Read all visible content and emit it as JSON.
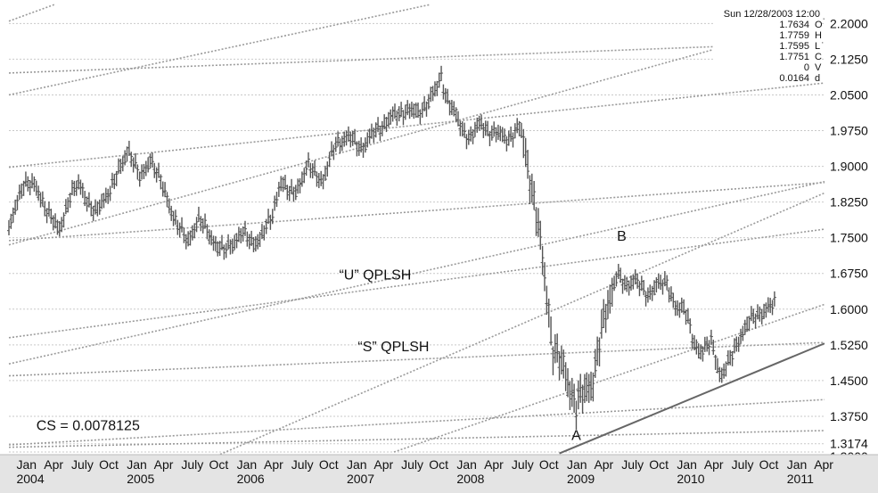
{
  "chart_data": {
    "type": "bar",
    "style": "OHLC price bars with trendline channels",
    "title": "",
    "xlabel": "",
    "ylabel": "",
    "ylim": [
      1.3,
      2.24
    ],
    "xlim": [
      "2003-12-01",
      "2011-04-30"
    ],
    "grid": true,
    "y_ticks": [
      "2.2000",
      "2.1250",
      "2.0500",
      "1.9750",
      "1.9000",
      "1.8250",
      "1.7500",
      "1.6750",
      "1.6000",
      "1.5250",
      "1.4500",
      "1.3750",
      "1.3174",
      "1.3000"
    ],
    "x_ticks": [
      {
        "label": "Jan",
        "year": "2004",
        "date": "2004-01-01"
      },
      {
        "label": "Apr",
        "date": "2004-04-01"
      },
      {
        "label": "July",
        "date": "2004-07-01"
      },
      {
        "label": "Oct",
        "date": "2004-10-01"
      },
      {
        "label": "Jan",
        "year": "2005",
        "date": "2005-01-01"
      },
      {
        "label": "Apr",
        "date": "2005-04-01"
      },
      {
        "label": "July",
        "date": "2005-07-01"
      },
      {
        "label": "Oct",
        "date": "2005-10-01"
      },
      {
        "label": "Jan",
        "year": "2006",
        "date": "2006-01-01"
      },
      {
        "label": "Apr",
        "date": "2006-04-01"
      },
      {
        "label": "July",
        "date": "2006-07-01"
      },
      {
        "label": "Oct",
        "date": "2006-10-01"
      },
      {
        "label": "Jan",
        "year": "2007",
        "date": "2007-01-01"
      },
      {
        "label": "Apr",
        "date": "2007-04-01"
      },
      {
        "label": "July",
        "date": "2007-07-01"
      },
      {
        "label": "Oct",
        "date": "2007-10-01"
      },
      {
        "label": "Jan",
        "year": "2008",
        "date": "2008-01-01"
      },
      {
        "label": "Apr",
        "date": "2008-04-01"
      },
      {
        "label": "July",
        "date": "2008-07-01"
      },
      {
        "label": "Oct",
        "date": "2008-10-01"
      },
      {
        "label": "Jan",
        "year": "2009",
        "date": "2009-01-01"
      },
      {
        "label": "Apr",
        "date": "2009-04-01"
      },
      {
        "label": "July",
        "date": "2009-07-01"
      },
      {
        "label": "Oct",
        "date": "2009-10-01"
      },
      {
        "label": "Jan",
        "year": "2010",
        "date": "2010-01-01"
      },
      {
        "label": "Apr",
        "date": "2010-04-01"
      },
      {
        "label": "July",
        "date": "2010-07-01"
      },
      {
        "label": "Oct",
        "date": "2010-10-01"
      },
      {
        "label": "Jan",
        "year": "2011",
        "date": "2011-01-01"
      },
      {
        "label": "Apr",
        "date": "2011-04-01"
      }
    ],
    "info_box": {
      "header": "Sun 12/28/2003 12:00",
      "rows": [
        {
          "value": "1.7634",
          "code": "O"
        },
        {
          "value": "1.7759",
          "code": "H"
        },
        {
          "value": "1.7595",
          "code": "L"
        },
        {
          "value": "1.7751",
          "code": "C"
        },
        {
          "value": "0",
          "code": "V"
        },
        {
          "value": "0.0164",
          "code": "d"
        }
      ]
    },
    "annotations": [
      {
        "text": "“U” QPLSH",
        "date": "2006-12-01",
        "y": 1.662
      },
      {
        "text": "“S” QPLSH",
        "date": "2007-02-01",
        "y": 1.512
      },
      {
        "text": "CS = 0.0078125",
        "date": "2004-03-01",
        "y": 1.346
      },
      {
        "text": "B",
        "date": "2009-06-10",
        "y": 1.744
      },
      {
        "text": "A",
        "date": "2009-01-10",
        "y": 1.325
      }
    ],
    "price_path": [
      [
        "2003-12-01",
        1.765
      ],
      [
        "2004-01-20",
        1.87
      ],
      [
        "2004-02-20",
        1.86
      ],
      [
        "2004-04-15",
        1.8
      ],
      [
        "2004-05-15",
        1.76
      ],
      [
        "2004-06-20",
        1.84
      ],
      [
        "2004-07-20",
        1.86
      ],
      [
        "2004-09-15",
        1.8
      ],
      [
        "2004-10-20",
        1.84
      ],
      [
        "2004-12-10",
        1.9
      ],
      [
        "2005-01-01",
        1.94
      ],
      [
        "2005-02-10",
        1.87
      ],
      [
        "2005-03-15",
        1.92
      ],
      [
        "2005-04-15",
        1.87
      ],
      [
        "2005-06-10",
        1.78
      ],
      [
        "2005-07-15",
        1.74
      ],
      [
        "2005-08-20",
        1.79
      ],
      [
        "2005-10-15",
        1.74
      ],
      [
        "2005-11-15",
        1.72
      ],
      [
        "2006-01-10",
        1.76
      ],
      [
        "2006-02-15",
        1.74
      ],
      [
        "2006-03-15",
        1.75
      ],
      [
        "2006-04-20",
        1.79
      ],
      [
        "2006-05-20",
        1.87
      ],
      [
        "2006-06-20",
        1.84
      ],
      [
        "2006-07-20",
        1.86
      ],
      [
        "2006-08-20",
        1.9
      ],
      [
        "2006-10-10",
        1.87
      ],
      [
        "2006-11-20",
        1.95
      ],
      [
        "2007-01-01",
        1.96
      ],
      [
        "2007-02-15",
        1.94
      ],
      [
        "2007-04-10",
        1.98
      ],
      [
        "2007-05-20",
        2.0
      ],
      [
        "2007-07-10",
        2.02
      ],
      [
        "2007-08-20",
        2.01
      ],
      [
        "2007-10-20",
        2.06
      ],
      [
        "2007-11-05",
        2.09
      ],
      [
        "2007-11-20",
        2.05
      ],
      [
        "2008-01-10",
        1.98
      ],
      [
        "2008-02-10",
        1.96
      ],
      [
        "2008-03-15",
        1.99
      ],
      [
        "2008-04-20",
        1.97
      ],
      [
        "2008-06-15",
        1.96
      ],
      [
        "2008-07-25",
        1.98
      ],
      [
        "2008-08-20",
        1.9
      ],
      [
        "2008-09-20",
        1.78
      ],
      [
        "2008-10-20",
        1.63
      ],
      [
        "2008-11-10",
        1.52
      ],
      [
        "2008-12-15",
        1.47
      ],
      [
        "2009-01-10",
        1.43
      ],
      [
        "2009-01-25",
        1.4
      ],
      [
        "2009-02-20",
        1.42
      ],
      [
        "2009-03-20",
        1.45
      ],
      [
        "2009-04-20",
        1.55
      ],
      [
        "2009-05-20",
        1.63
      ],
      [
        "2009-06-10",
        1.68
      ],
      [
        "2009-07-10",
        1.64
      ],
      [
        "2009-08-10",
        1.67
      ],
      [
        "2009-09-20",
        1.62
      ],
      [
        "2009-10-20",
        1.66
      ],
      [
        "2009-11-20",
        1.65
      ],
      [
        "2009-12-20",
        1.61
      ],
      [
        "2010-01-20",
        1.6
      ],
      [
        "2010-02-20",
        1.53
      ],
      [
        "2010-03-20",
        1.51
      ],
      [
        "2010-04-20",
        1.53
      ],
      [
        "2010-05-20",
        1.46
      ],
      [
        "2010-06-20",
        1.49
      ],
      [
        "2010-07-20",
        1.54
      ],
      [
        "2010-08-20",
        1.57
      ],
      [
        "2010-09-20",
        1.59
      ],
      [
        "2010-10-20",
        1.6
      ],
      [
        "2010-11-20",
        1.61
      ]
    ],
    "trendlines": [
      {
        "name": "upper-1",
        "from": [
          "2003-12-01",
          2.205
        ],
        "to": [
          "2004-05-01",
          2.24
        ]
      },
      {
        "name": "upper-2",
        "from": [
          "2003-12-01",
          2.05
        ],
        "to": [
          "2007-10-01",
          2.24
        ]
      },
      {
        "name": "upper-3",
        "from": [
          "2003-12-01",
          1.735
        ],
        "to": [
          "2011-04-30",
          2.21
        ]
      },
      {
        "name": "upper-4",
        "from": [
          "2003-12-01",
          2.096
        ],
        "to": [
          "2011-04-30",
          2.16
        ]
      },
      {
        "name": "upper-5",
        "from": [
          "2003-12-01",
          1.898
        ],
        "to": [
          "2011-04-30",
          2.075
        ]
      },
      {
        "name": "mid-1",
        "from": [
          "2003-12-01",
          1.744
        ],
        "to": [
          "2011-04-30",
          1.866
        ]
      },
      {
        "name": "mid-2",
        "from": [
          "2003-12-01",
          1.485
        ],
        "to": [
          "2011-04-30",
          1.868
        ]
      },
      {
        "name": "u-line",
        "from": [
          "2003-12-01",
          1.54
        ],
        "to": [
          "2011-04-30",
          1.768
        ]
      },
      {
        "name": "s-line",
        "from": [
          "2005-11-01",
          1.295
        ],
        "to": [
          "2011-04-30",
          1.844
        ]
      },
      {
        "name": "lower-1",
        "from": [
          "2003-12-01",
          1.46
        ],
        "to": [
          "2011-04-30",
          1.53
        ]
      },
      {
        "name": "lower-2",
        "from": [
          "2007-06-01",
          1.3
        ],
        "to": [
          "2011-04-30",
          1.61
        ]
      },
      {
        "name": "lower-3",
        "from": [
          "2003-12-01",
          1.315
        ],
        "to": [
          "2011-04-30",
          1.41
        ]
      },
      {
        "name": "lower-4",
        "from": [
          "2003-12-01",
          1.31
        ],
        "to": [
          "2011-04-30",
          1.345
        ]
      }
    ],
    "support_line": {
      "from": [
        "2008-12-01",
        1.297
      ],
      "to": [
        "2011-04-30",
        1.528
      ]
    }
  }
}
